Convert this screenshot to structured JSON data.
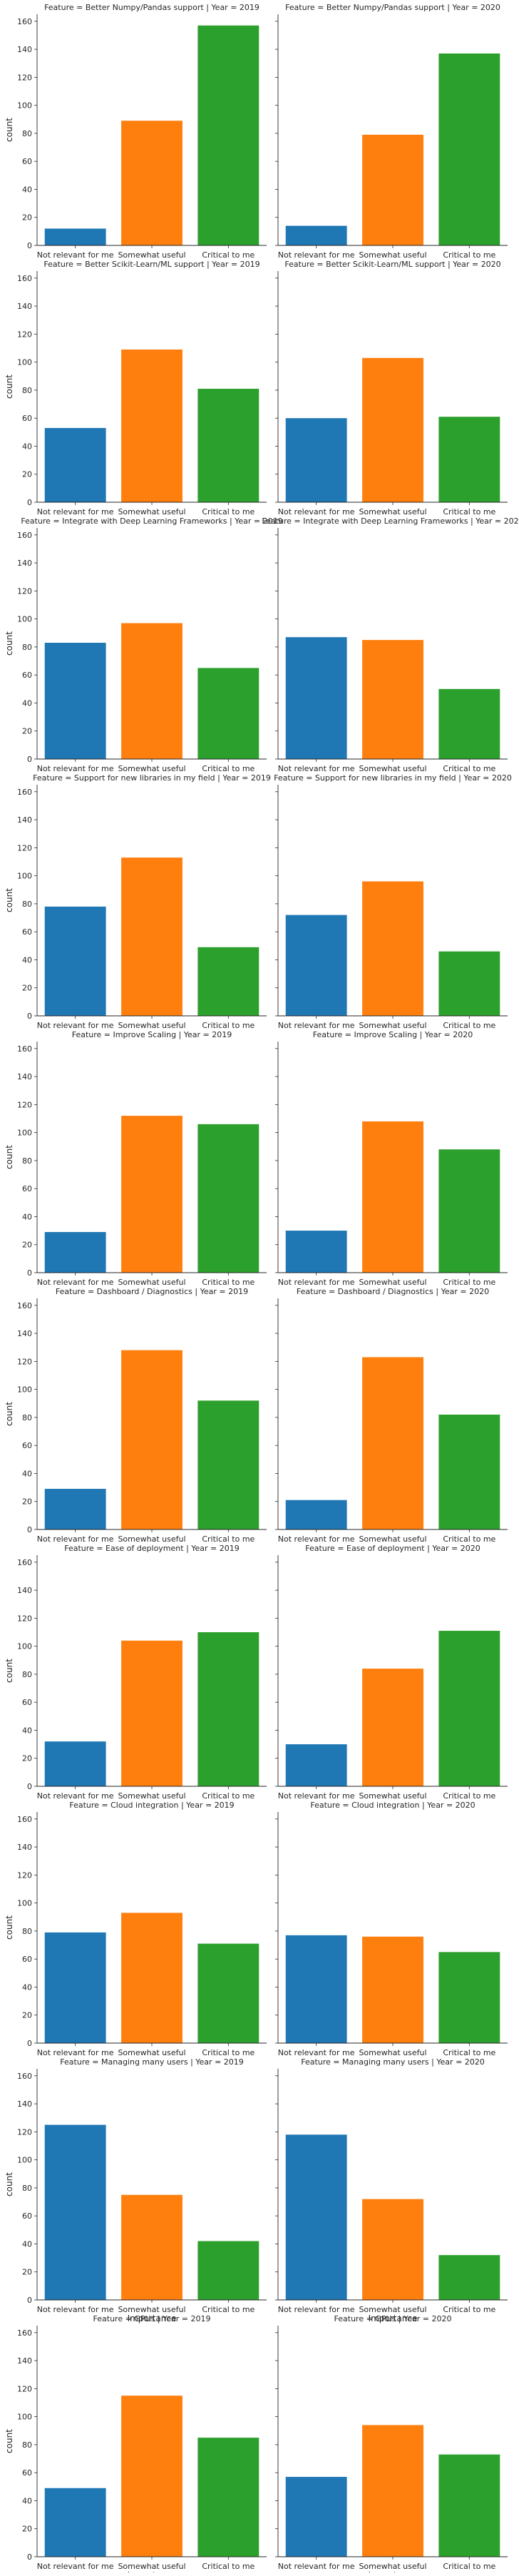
{
  "chart_data": {
    "type": "bar",
    "layout": "facet-grid",
    "row_variable": "Feature",
    "col_variable": "Year",
    "categories": [
      "Not relevant for me",
      "Somewhat useful",
      "Critical to me"
    ],
    "colors": [
      "#1f77b4",
      "#ff7f0e",
      "#2ca02c"
    ],
    "xlabel": "Importance",
    "ylabel": "count",
    "ylim": [
      0,
      165
    ],
    "yticks": [
      0,
      20,
      40,
      60,
      80,
      100,
      120,
      140,
      160
    ],
    "grid": false,
    "shared_y": true,
    "facets": [
      {
        "title": "Feature = Better Numpy/Pandas support | Year = 2019",
        "values": [
          12,
          89,
          157
        ]
      },
      {
        "title": "Feature = Better Numpy/Pandas support | Year = 2020",
        "values": [
          14,
          79,
          137
        ]
      },
      {
        "title": "Feature = Better Scikit-Learn/ML support | Year = 2019",
        "values": [
          53,
          109,
          81
        ]
      },
      {
        "title": "Feature = Better Scikit-Learn/ML support | Year = 2020",
        "values": [
          60,
          103,
          61
        ]
      },
      {
        "title": "Feature = Integrate with Deep Learning Frameworks | Year = 2019",
        "values": [
          83,
          97,
          65
        ]
      },
      {
        "title": "Feature = Integrate with Deep Learning Frameworks | Year = 2020",
        "values": [
          87,
          85,
          50
        ]
      },
      {
        "title": "Feature = Support for new libraries in my field | Year = 2019",
        "values": [
          78,
          113,
          49
        ]
      },
      {
        "title": "Feature = Support for new libraries in my field | Year = 2020",
        "values": [
          72,
          96,
          46
        ]
      },
      {
        "title": "Feature = Improve Scaling  | Year = 2019",
        "values": [
          29,
          112,
          106
        ]
      },
      {
        "title": "Feature = Improve Scaling  | Year = 2020",
        "values": [
          30,
          108,
          88
        ]
      },
      {
        "title": "Feature = Dashboard / Diagnostics | Year = 2019",
        "values": [
          29,
          128,
          92
        ]
      },
      {
        "title": "Feature = Dashboard / Diagnostics | Year = 2020",
        "values": [
          21,
          123,
          82
        ]
      },
      {
        "title": "Feature = Ease of deployment | Year = 2019",
        "values": [
          32,
          104,
          110
        ]
      },
      {
        "title": "Feature = Ease of deployment | Year = 2020",
        "values": [
          30,
          84,
          111
        ]
      },
      {
        "title": "Feature = Cloud integration | Year = 2019",
        "values": [
          79,
          93,
          71
        ]
      },
      {
        "title": "Feature = Cloud integration | Year = 2020",
        "values": [
          77,
          76,
          65
        ]
      },
      {
        "title": "Feature = Managing many users | Year = 2019",
        "values": [
          125,
          75,
          42
        ]
      },
      {
        "title": "Feature = Managing many users | Year = 2020",
        "values": [
          118,
          72,
          32
        ]
      },
      {
        "title": "Feature = GPUs | Year = 2019",
        "values": [
          49,
          115,
          85
        ]
      },
      {
        "title": "Feature = GPUs | Year = 2020",
        "values": [
          57,
          94,
          73
        ]
      }
    ]
  }
}
